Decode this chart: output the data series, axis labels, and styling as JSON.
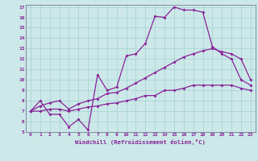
{
  "xlabel": "Windchill (Refroidissement éolien,°C)",
  "background_color": "#cce8e8",
  "line_color": "#882299",
  "xlim": [
    -0.5,
    23.5
  ],
  "ylim": [
    5,
    17.2
  ],
  "xticks": [
    0,
    1,
    2,
    3,
    4,
    5,
    6,
    7,
    8,
    9,
    10,
    11,
    12,
    13,
    14,
    15,
    16,
    17,
    18,
    19,
    20,
    21,
    22,
    23
  ],
  "yticks": [
    5,
    6,
    7,
    8,
    9,
    10,
    11,
    12,
    13,
    14,
    15,
    16,
    17
  ],
  "curve1_x": [
    0,
    1,
    2,
    3,
    4,
    5,
    6,
    7,
    8,
    9,
    10,
    11,
    12,
    13,
    14,
    15,
    16,
    17,
    18,
    19,
    20,
    21,
    22,
    23
  ],
  "curve1_y": [
    7.0,
    8.0,
    6.7,
    6.7,
    5.5,
    6.2,
    5.2,
    10.5,
    9.0,
    9.3,
    12.3,
    12.5,
    13.5,
    16.1,
    16.0,
    17.0,
    16.7,
    16.7,
    16.5,
    13.2,
    12.5,
    12.0,
    10.0,
    9.5
  ],
  "curve2_x": [
    0,
    1,
    2,
    3,
    4,
    5,
    6,
    7,
    8,
    9,
    10,
    11,
    12,
    13,
    14,
    15,
    16,
    17,
    18,
    19,
    20,
    21,
    22,
    23
  ],
  "curve2_y": [
    7.0,
    7.5,
    7.8,
    8.0,
    7.2,
    7.7,
    8.0,
    8.2,
    8.7,
    8.8,
    9.2,
    9.7,
    10.2,
    10.7,
    11.2,
    11.7,
    12.2,
    12.5,
    12.8,
    13.0,
    12.7,
    12.5,
    12.0,
    10.0
  ],
  "curve3_x": [
    0,
    1,
    2,
    3,
    4,
    5,
    6,
    7,
    8,
    9,
    10,
    11,
    12,
    13,
    14,
    15,
    16,
    17,
    18,
    19,
    20,
    21,
    22,
    23
  ],
  "curve3_y": [
    7.0,
    7.0,
    7.2,
    7.2,
    7.0,
    7.2,
    7.4,
    7.5,
    7.7,
    7.8,
    8.0,
    8.2,
    8.5,
    8.5,
    9.0,
    9.0,
    9.2,
    9.5,
    9.5,
    9.5,
    9.5,
    9.5,
    9.2,
    9.0
  ]
}
